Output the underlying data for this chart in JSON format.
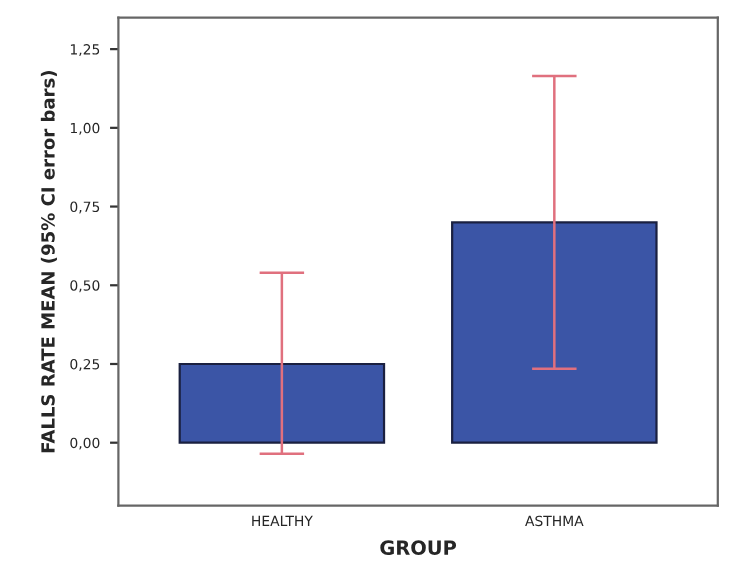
{
  "chart_data": {
    "type": "bar",
    "xlabel": "GROUP",
    "ylabel": "FALLS RATE MEAN (95% CI error bars)",
    "categories": [
      "HEALTHY",
      "ASTHMA"
    ],
    "series": [
      {
        "color": "#3b55a6",
        "values": [
          0.25,
          0.7
        ],
        "errors": [
          [
            -0.035,
            0.54
          ],
          [
            0.235,
            1.165
          ]
        ]
      }
    ],
    "ylim": [
      -0.2,
      1.35
    ],
    "yticks": [
      {
        "value": 0,
        "label": "0,00"
      },
      {
        "value": 0.25,
        "label": "0,25"
      },
      {
        "value": 0.5,
        "label": "0,50"
      },
      {
        "value": 0.75,
        "label": "0,75"
      },
      {
        "value": 1.0,
        "label": "1,00"
      },
      {
        "value": 1.25,
        "label": "1,25"
      }
    ],
    "grid": false
  }
}
